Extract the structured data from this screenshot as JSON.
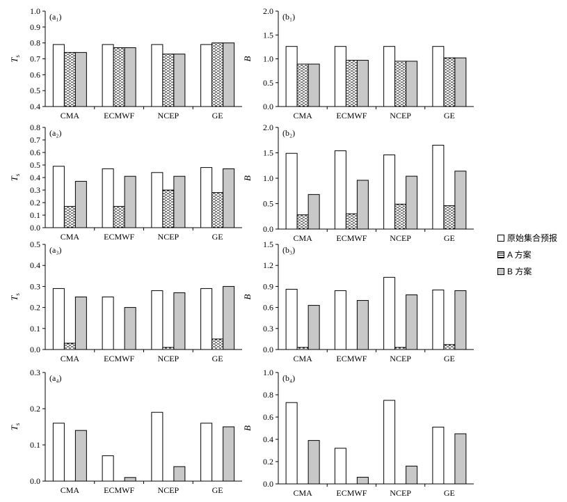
{
  "legend": {
    "original": "原始集合预报",
    "scheme_a": "A 方案",
    "scheme_b": "B 方案"
  },
  "colors": {
    "original": "#ffffff",
    "scheme_a_pattern": "#000000",
    "scheme_b": "#c8c8c8",
    "axis": "#000000"
  },
  "chart_data": [
    {
      "id": "a1",
      "type": "bar",
      "title": "(a₁)",
      "ylabel": "Ts",
      "ylim": [
        0.4,
        1.0
      ],
      "yticks": [
        "0.4",
        "0.5",
        "0.6",
        "0.7",
        "0.8",
        "0.9",
        "1.0"
      ],
      "categories": [
        "CMA",
        "ECMWF",
        "NCEP",
        "GE"
      ],
      "series": [
        {
          "name": "原始集合预报",
          "values": [
            0.79,
            0.79,
            0.79,
            0.79
          ]
        },
        {
          "name": "A 方案",
          "values": [
            0.74,
            0.77,
            0.73,
            0.8
          ]
        },
        {
          "name": "B 方案",
          "values": [
            0.74,
            0.77,
            0.73,
            0.8
          ]
        }
      ]
    },
    {
      "id": "b1",
      "type": "bar",
      "title": "(b₁)",
      "ylabel": "B",
      "ylim": [
        0.0,
        2.0
      ],
      "yticks": [
        "0.0",
        "0.5",
        "1.0",
        "1.5",
        "2.0"
      ],
      "categories": [
        "CMA",
        "ECMWF",
        "NCEP",
        "GE"
      ],
      "series": [
        {
          "name": "原始集合预报",
          "values": [
            1.26,
            1.26,
            1.26,
            1.26
          ]
        },
        {
          "name": "A 方案",
          "values": [
            0.89,
            0.97,
            0.95,
            1.02
          ]
        },
        {
          "name": "B 方案",
          "values": [
            0.89,
            0.97,
            0.95,
            1.02
          ]
        }
      ]
    },
    {
      "id": "a2",
      "type": "bar",
      "title": "(a₂)",
      "ylabel": "Ts",
      "ylim": [
        0.0,
        0.8
      ],
      "yticks": [
        "0.0",
        "0.1",
        "0.2",
        "0.3",
        "0.4",
        "0.5",
        "0.6",
        "0.7",
        "0.8"
      ],
      "categories": [
        "CMA",
        "ECMWF",
        "NCEP",
        "GE"
      ],
      "series": [
        {
          "name": "原始集合预报",
          "values": [
            0.49,
            0.47,
            0.44,
            0.48
          ]
        },
        {
          "name": "A 方案",
          "values": [
            0.17,
            0.17,
            0.3,
            0.28
          ]
        },
        {
          "name": "B 方案",
          "values": [
            0.37,
            0.41,
            0.41,
            0.47
          ]
        }
      ]
    },
    {
      "id": "b2",
      "type": "bar",
      "title": "(b₂)",
      "ylabel": "B",
      "ylim": [
        0.0,
        2.0
      ],
      "yticks": [
        "0.0",
        "0.5",
        "1.0",
        "1.5",
        "2.0"
      ],
      "categories": [
        "CMA",
        "ECMWF",
        "NCEP",
        "GE"
      ],
      "series": [
        {
          "name": "原始集合预报",
          "values": [
            1.49,
            1.54,
            1.46,
            1.65
          ]
        },
        {
          "name": "A 方案",
          "values": [
            0.28,
            0.3,
            0.49,
            0.46
          ]
        },
        {
          "name": "B 方案",
          "values": [
            0.68,
            0.96,
            1.04,
            1.14
          ]
        }
      ]
    },
    {
      "id": "a3",
      "type": "bar",
      "title": "(a₃)",
      "ylabel": "Ts",
      "ylim": [
        0.0,
        0.5
      ],
      "yticks": [
        "0.0",
        "0.1",
        "0.2",
        "0.3",
        "0.4",
        "0.5"
      ],
      "categories": [
        "CMA",
        "ECMWF",
        "NCEP",
        "GE"
      ],
      "series": [
        {
          "name": "原始集合预报",
          "values": [
            0.29,
            0.25,
            0.28,
            0.29
          ]
        },
        {
          "name": "A 方案",
          "values": [
            0.03,
            0.0,
            0.01,
            0.05
          ]
        },
        {
          "name": "B 方案",
          "values": [
            0.25,
            0.2,
            0.27,
            0.3
          ]
        }
      ]
    },
    {
      "id": "b3",
      "type": "bar",
      "title": "(b₃)",
      "ylabel": "B",
      "ylim": [
        0.0,
        1.5
      ],
      "yticks": [
        "0.0",
        "0.3",
        "0.6",
        "0.9",
        "1.2",
        "1.5"
      ],
      "categories": [
        "CMA",
        "ECMWF",
        "NCEP",
        "GE"
      ],
      "series": [
        {
          "name": "原始集合预报",
          "values": [
            0.86,
            0.84,
            1.03,
            0.85
          ]
        },
        {
          "name": "A 方案",
          "values": [
            0.03,
            0.0,
            0.03,
            0.07
          ]
        },
        {
          "name": "B 方案",
          "values": [
            0.63,
            0.7,
            0.78,
            0.84
          ]
        }
      ]
    },
    {
      "id": "a4",
      "type": "bar",
      "title": "(a₄)",
      "ylabel": "Ts",
      "ylim": [
        0.0,
        0.3
      ],
      "yticks": [
        "0.0",
        "0.1",
        "0.2",
        "0.3"
      ],
      "categories": [
        "CMA",
        "ECMWF",
        "NCEP",
        "GE"
      ],
      "series": [
        {
          "name": "原始集合预报",
          "values": [
            0.16,
            0.07,
            0.19,
            0.16
          ]
        },
        {
          "name": "A 方案",
          "values": [
            0.0,
            0.0,
            0.0,
            0.0
          ]
        },
        {
          "name": "B 方案",
          "values": [
            0.14,
            0.01,
            0.04,
            0.15
          ]
        }
      ]
    },
    {
      "id": "b4",
      "type": "bar",
      "title": "(b₄)",
      "ylabel": "B",
      "ylim": [
        0.0,
        1.0
      ],
      "yticks": [
        "0.0",
        "0.2",
        "0.4",
        "0.6",
        "0.8",
        "1.0"
      ],
      "categories": [
        "CMA",
        "ECMWF",
        "NCEP",
        "GE"
      ],
      "series": [
        {
          "name": "原始集合预报",
          "values": [
            0.73,
            0.32,
            0.75,
            0.51
          ]
        },
        {
          "name": "A 方案",
          "values": [
            0.0,
            0.0,
            0.0,
            0.0
          ]
        },
        {
          "name": "B 方案",
          "values": [
            0.39,
            0.06,
            0.16,
            0.45
          ]
        }
      ]
    }
  ]
}
